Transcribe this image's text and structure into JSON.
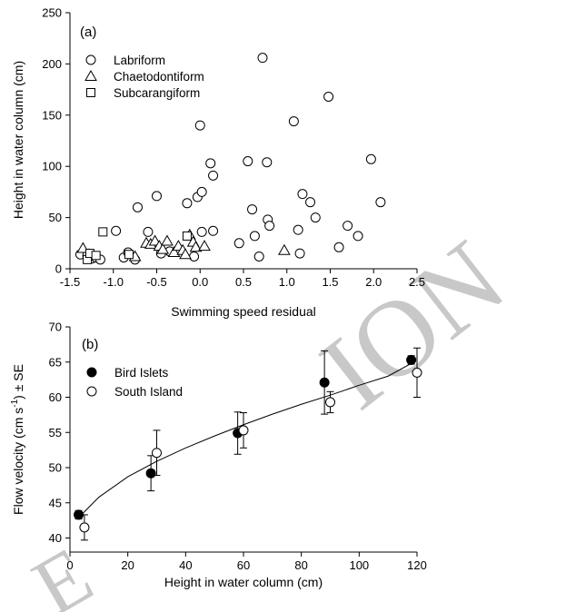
{
  "watermark": {
    "text": "ION",
    "text_left": "E"
  },
  "chart_data": [
    {
      "type": "scatter",
      "panel_label": "(a)",
      "xlabel": "Swimming speed residual",
      "ylabel": "Height in water column (cm)",
      "xlim": [
        -1.5,
        2.5
      ],
      "ylim": [
        0,
        250
      ],
      "xticks": [
        "-1.5",
        "-1.0",
        "-0.5",
        "0.0",
        "0.5",
        "1.0",
        "1.5",
        "2.0",
        "2.5"
      ],
      "yticks": [
        "0",
        "50",
        "100",
        "150",
        "200",
        "250"
      ],
      "legend_position": "top-left",
      "series": [
        {
          "name": "Labriform",
          "marker": "circle",
          "points": [
            [
              -1.38,
              14
            ],
            [
              -1.3,
              13
            ],
            [
              -1.25,
              10
            ],
            [
              -1.2,
              11
            ],
            [
              -1.15,
              9
            ],
            [
              -0.97,
              37
            ],
            [
              -0.88,
              11
            ],
            [
              -0.83,
              16
            ],
            [
              -0.75,
              9
            ],
            [
              -0.72,
              60
            ],
            [
              -0.6,
              36
            ],
            [
              -0.5,
              71
            ],
            [
              -0.45,
              15
            ],
            [
              -0.35,
              17
            ],
            [
              -0.15,
              64
            ],
            [
              -0.07,
              12
            ],
            [
              -0.03,
              70
            ],
            [
              0.0,
              140
            ],
            [
              0.02,
              75
            ],
            [
              0.02,
              36
            ],
            [
              0.12,
              103
            ],
            [
              0.15,
              91
            ],
            [
              0.15,
              37
            ],
            [
              0.45,
              25
            ],
            [
              0.55,
              105
            ],
            [
              0.6,
              58
            ],
            [
              0.63,
              32
            ],
            [
              0.68,
              12
            ],
            [
              0.72,
              206
            ],
            [
              0.77,
              104
            ],
            [
              0.78,
              48
            ],
            [
              0.8,
              42
            ],
            [
              1.08,
              144
            ],
            [
              1.13,
              38
            ],
            [
              1.15,
              15
            ],
            [
              1.18,
              73
            ],
            [
              1.27,
              65
            ],
            [
              1.33,
              50
            ],
            [
              1.48,
              168
            ],
            [
              1.6,
              21
            ],
            [
              1.7,
              42
            ],
            [
              1.82,
              32
            ],
            [
              1.97,
              107
            ],
            [
              2.08,
              65
            ]
          ]
        },
        {
          "name": "Chaetodontiform",
          "marker": "triangle",
          "points": [
            [
              -1.35,
              20
            ],
            [
              -1.28,
              14
            ],
            [
              -0.75,
              12
            ],
            [
              -0.62,
              25
            ],
            [
              -0.57,
              24
            ],
            [
              -0.52,
              27
            ],
            [
              -0.47,
              22
            ],
            [
              -0.43,
              19
            ],
            [
              -0.38,
              27
            ],
            [
              -0.3,
              16
            ],
            [
              -0.25,
              22
            ],
            [
              -0.2,
              18
            ],
            [
              -0.17,
              14
            ],
            [
              -0.12,
              33
            ],
            [
              -0.08,
              26
            ],
            [
              -0.05,
              21
            ],
            [
              0.05,
              22
            ],
            [
              0.97,
              18
            ]
          ]
        },
        {
          "name": "Subcarangiform",
          "marker": "square",
          "points": [
            [
              -1.3,
              9
            ],
            [
              -1.27,
              15
            ],
            [
              -1.2,
              13
            ],
            [
              -1.12,
              36
            ],
            [
              -0.82,
              14
            ],
            [
              -0.15,
              32
            ]
          ]
        }
      ]
    },
    {
      "type": "scatter",
      "panel_label": "(b)",
      "xlabel": "Height in water column (cm)",
      "ylabel": "Flow velocity (cm s",
      "ylabel_exp": "-1",
      "ylabel_end": ") ± SE",
      "xlim": [
        0,
        120
      ],
      "ylim": [
        38,
        70
      ],
      "xticks": [
        "0",
        "20",
        "40",
        "60",
        "80",
        "100",
        "120"
      ],
      "yticks": [
        "40",
        "45",
        "50",
        "55",
        "60",
        "65",
        "70"
      ],
      "legend_position": "top-left",
      "series": [
        {
          "name": "Bird Islets",
          "marker": "filled-circle",
          "points": [
            {
              "x": 3,
              "y": 43.3,
              "se": 0.6
            },
            {
              "x": 28,
              "y": 49.2,
              "se": 2.5
            },
            {
              "x": 58,
              "y": 54.9,
              "se": 3.0
            },
            {
              "x": 88,
              "y": 62.1,
              "se": 4.5
            },
            {
              "x": 118,
              "y": 65.3,
              "se": 0.6
            }
          ]
        },
        {
          "name": "South Island",
          "marker": "open-circle",
          "points": [
            {
              "x": 5,
              "y": 41.5,
              "se": 1.8
            },
            {
              "x": 30,
              "y": 52.1,
              "se": 3.2
            },
            {
              "x": 60,
              "y": 55.3,
              "se": 2.5
            },
            {
              "x": 90,
              "y": 59.3,
              "se": 1.5
            },
            {
              "x": 120,
              "y": 63.5,
              "se": 3.5
            }
          ]
        }
      ],
      "fit_curve": {
        "points": [
          [
            3,
            42.9
          ],
          [
            10,
            45.8
          ],
          [
            20,
            48.7
          ],
          [
            30,
            50.9
          ],
          [
            40,
            52.8
          ],
          [
            50,
            54.5
          ],
          [
            60,
            56.1
          ],
          [
            70,
            57.6
          ],
          [
            80,
            59.0
          ],
          [
            90,
            60.3
          ],
          [
            100,
            61.7
          ],
          [
            110,
            63.0
          ],
          [
            118,
            64.8
          ]
        ]
      }
    }
  ]
}
